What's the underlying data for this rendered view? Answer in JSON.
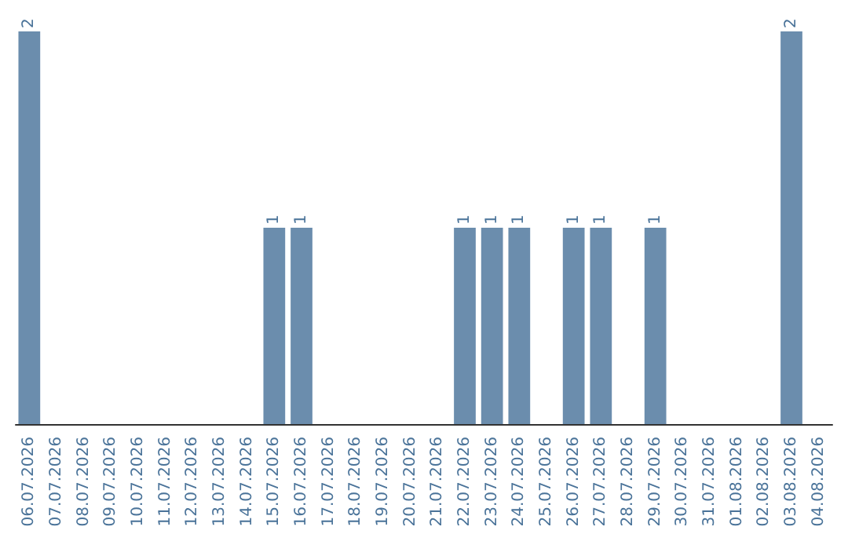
{
  "chart_data": {
    "type": "bar",
    "categories": [
      "06.07.2026",
      "07.07.2026",
      "08.07.2026",
      "09.07.2026",
      "10.07.2026",
      "11.07.2026",
      "12.07.2026",
      "13.07.2026",
      "14.07.2026",
      "15.07.2026",
      "16.07.2026",
      "17.07.2026",
      "18.07.2026",
      "19.07.2026",
      "20.07.2026",
      "21.07.2026",
      "22.07.2026",
      "23.07.2026",
      "24.07.2026",
      "25.07.2026",
      "26.07.2026",
      "27.07.2026",
      "28.07.2026",
      "29.07.2026",
      "30.07.2026",
      "31.07.2026",
      "01.08.2026",
      "02.08.2026",
      "03.08.2026",
      "04.08.2026"
    ],
    "values": [
      2,
      0,
      0,
      0,
      0,
      0,
      0,
      0,
      0,
      1,
      1,
      0,
      0,
      0,
      0,
      0,
      1,
      1,
      1,
      0,
      1,
      1,
      0,
      1,
      0,
      0,
      0,
      0,
      2,
      0
    ],
    "value_labels": [
      "2",
      null,
      null,
      null,
      null,
      null,
      null,
      null,
      null,
      "1",
      "1",
      null,
      null,
      null,
      null,
      null,
      "1",
      "1",
      "1",
      null,
      "1",
      "1",
      null,
      "1",
      null,
      null,
      null,
      null,
      "2",
      null
    ],
    "color": "#6b8dad",
    "grid": false,
    "tick_labels": "x"
  }
}
